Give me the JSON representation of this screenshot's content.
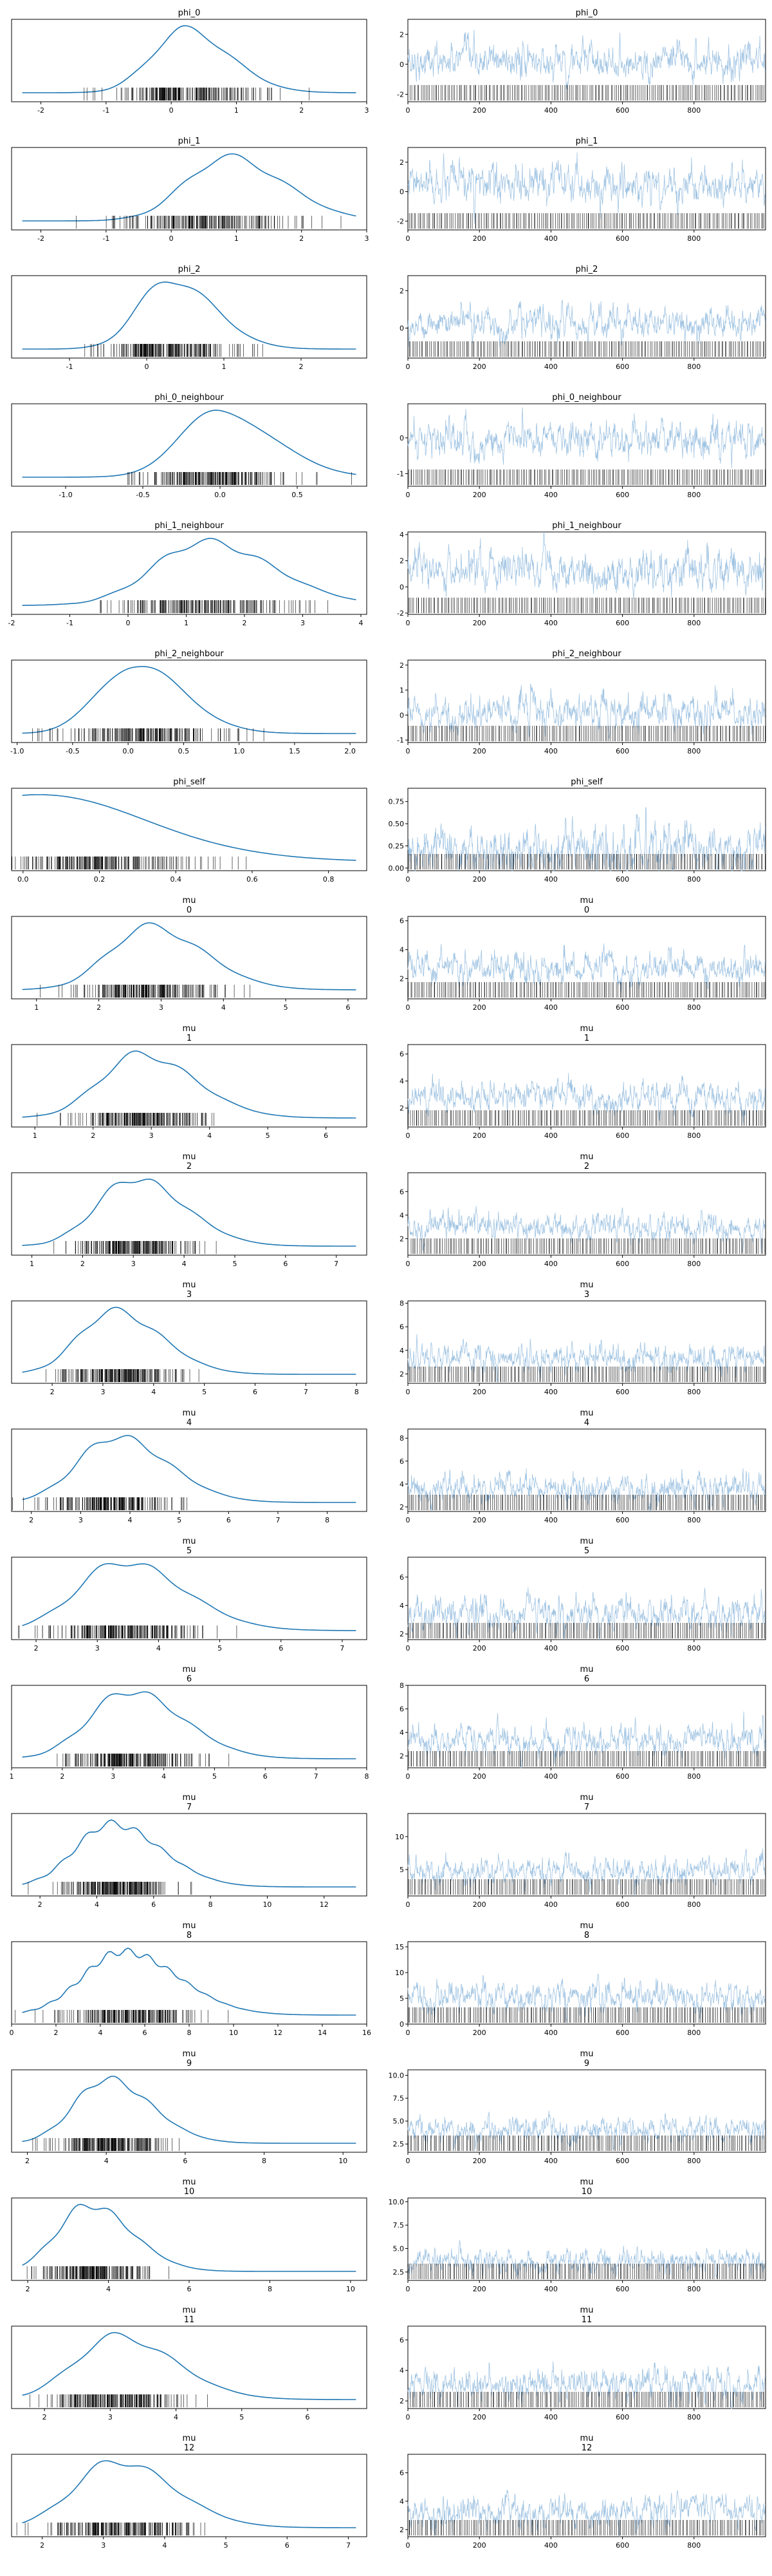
{
  "figure": {
    "rows": [
      {
        "title": "phi_0",
        "kde_ticks": [
          "-2",
          "-1",
          "0",
          "1",
          "2",
          "3"
        ],
        "kde_xlim": [
          -2.45,
          3.0
        ],
        "kde_peak": 0.2,
        "kde_spread": 0.55,
        "trace_ticks": [
          "-2",
          "0",
          "2"
        ],
        "trace_ylim": [
          -2.5,
          3.0
        ],
        "trace_mean": 0.2,
        "trace_amp": 1.0
      },
      {
        "title": "phi_1",
        "kde_ticks": [
          "-2",
          "-1",
          "0",
          "1",
          "2",
          "3"
        ],
        "kde_xlim": [
          -2.45,
          3.0
        ],
        "kde_peak": 0.85,
        "kde_spread": 0.7,
        "trace_ticks": [
          "-2",
          "0",
          "2"
        ],
        "trace_ylim": [
          -2.6,
          3.0
        ],
        "trace_mean": 0.4,
        "trace_amp": 1.1
      },
      {
        "title": "phi_2",
        "kde_ticks": [
          "-1",
          "0",
          "1",
          "2"
        ],
        "kde_xlim": [
          -1.75,
          2.85
        ],
        "kde_peak": 0.3,
        "kde_spread": 0.45,
        "trace_ticks": [
          "0",
          "2"
        ],
        "trace_ylim": [
          -1.6,
          2.8
        ],
        "trace_mean": 0.3,
        "trace_amp": 0.7
      },
      {
        "title": "phi_0_neighbour",
        "kde_ticks": [
          "-1.0",
          "-0.5",
          "0.0",
          "0.5"
        ],
        "kde_xlim": [
          -1.35,
          0.95
        ],
        "kde_peak": 0.0,
        "kde_spread": 0.28,
        "trace_ticks": [
          "-1",
          "0"
        ],
        "trace_ylim": [
          -1.35,
          0.95
        ],
        "trace_mean": -0.05,
        "trace_amp": 0.45
      },
      {
        "title": "phi_1_neighbour",
        "kde_ticks": [
          "-2",
          "-1",
          "0",
          "1",
          "2",
          "3",
          "4"
        ],
        "kde_xlim": [
          -2.0,
          4.1
        ],
        "kde_peak": 1.3,
        "kde_spread": 0.95,
        "trace_ticks": [
          "-2",
          "0",
          "2",
          "4"
        ],
        "trace_ylim": [
          -2.1,
          4.2
        ],
        "trace_mean": 1.2,
        "trace_amp": 1.3
      },
      {
        "title": "phi_2_neighbour",
        "kde_ticks": [
          "-1.0",
          "-0.5",
          "0.0",
          "0.5",
          "1.0",
          "1.5",
          "2.0"
        ],
        "kde_xlim": [
          -1.05,
          2.15
        ],
        "kde_peak": 0.05,
        "kde_spread": 0.35,
        "trace_ticks": [
          "-1",
          "0",
          "1",
          "2"
        ],
        "trace_ylim": [
          -1.1,
          2.2
        ],
        "trace_mean": 0.1,
        "trace_amp": 0.6
      },
      {
        "title": "phi_self",
        "kde_ticks": [
          "0.0",
          "0.2",
          "0.4",
          "0.6",
          "0.8"
        ],
        "kde_xlim": [
          -0.03,
          0.9
        ],
        "kde_peak": 0.0,
        "kde_spread": 0.25,
        "trace_ticks": [
          "0.00",
          "0.25",
          "0.50",
          "0.75"
        ],
        "trace_ylim": [
          -0.03,
          0.9
        ],
        "trace_mean": 0.2,
        "trace_amp": 0.22
      },
      {
        "title": "mu\n0",
        "kde_ticks": [
          "1",
          "2",
          "3",
          "4",
          "5",
          "6"
        ],
        "kde_xlim": [
          0.6,
          6.3
        ],
        "kde_peak": 2.8,
        "kde_spread": 0.7,
        "trace_ticks": [
          "2",
          "4",
          "6"
        ],
        "trace_ylim": [
          0.6,
          6.3
        ],
        "trace_mean": 2.8,
        "trace_amp": 0.9
      },
      {
        "title": "mu\n1",
        "kde_ticks": [
          "1",
          "2",
          "3",
          "4",
          "5",
          "6"
        ],
        "kde_xlim": [
          0.6,
          6.7
        ],
        "kde_peak": 2.8,
        "kde_spread": 0.75,
        "trace_ticks": [
          "2",
          "4",
          "6"
        ],
        "trace_ylim": [
          0.6,
          6.7
        ],
        "trace_mean": 2.8,
        "trace_amp": 0.95
      },
      {
        "title": "mu\n2",
        "kde_ticks": [
          "1",
          "2",
          "3",
          "4",
          "5",
          "6",
          "7"
        ],
        "kde_xlim": [
          0.6,
          7.6
        ],
        "kde_peak": 3.0,
        "kde_spread": 0.8,
        "trace_ticks": [
          "2",
          "4",
          "6"
        ],
        "trace_ylim": [
          0.6,
          7.6
        ],
        "trace_mean": 3.0,
        "trace_amp": 1.0
      },
      {
        "title": "mu\n3",
        "kde_ticks": [
          "2",
          "3",
          "4",
          "5",
          "6",
          "7",
          "8"
        ],
        "kde_xlim": [
          1.2,
          8.2
        ],
        "kde_peak": 3.2,
        "kde_spread": 0.75,
        "trace_ticks": [
          "2",
          "4",
          "6",
          "8"
        ],
        "trace_ylim": [
          1.2,
          8.2
        ],
        "trace_mean": 3.3,
        "trace_amp": 1.0
      },
      {
        "title": "mu\n4",
        "kde_ticks": [
          "2",
          "3",
          "4",
          "5",
          "6",
          "7",
          "8"
        ],
        "kde_xlim": [
          1.6,
          8.8
        ],
        "kde_peak": 3.7,
        "kde_spread": 0.85,
        "trace_ticks": [
          "2",
          "4",
          "6",
          "8"
        ],
        "trace_ylim": [
          1.6,
          8.8
        ],
        "trace_mean": 3.7,
        "trace_amp": 1.1
      },
      {
        "title": "mu\n5",
        "kde_ticks": [
          "2",
          "3",
          "4",
          "5",
          "6",
          "7"
        ],
        "kde_xlim": [
          1.6,
          7.4
        ],
        "kde_peak": 3.4,
        "kde_spread": 0.8,
        "trace_ticks": [
          "2",
          "4",
          "6"
        ],
        "trace_ylim": [
          1.6,
          7.4
        ],
        "trace_mean": 3.4,
        "trace_amp": 1.0
      },
      {
        "title": "mu\n6",
        "kde_ticks": [
          "1",
          "2",
          "3",
          "4",
          "5",
          "6",
          "7",
          "8"
        ],
        "kde_xlim": [
          1.0,
          8.0
        ],
        "kde_peak": 3.3,
        "kde_spread": 0.85,
        "trace_ticks": [
          "2",
          "4",
          "6",
          "8"
        ],
        "trace_ylim": [
          1.0,
          8.0
        ],
        "trace_mean": 3.3,
        "trace_amp": 1.1
      },
      {
        "title": "mu\n7",
        "kde_ticks": [
          "2",
          "4",
          "6",
          "8",
          "10",
          "12"
        ],
        "kde_xlim": [
          1.0,
          13.5
        ],
        "kde_peak": 4.5,
        "kde_spread": 1.4,
        "trace_ticks": [
          "5",
          "10"
        ],
        "trace_ylim": [
          1.0,
          13.5
        ],
        "trace_mean": 4.6,
        "trace_amp": 1.8
      },
      {
        "title": "mu\n8",
        "kde_ticks": [
          "0",
          "2",
          "4",
          "6",
          "8",
          "10",
          "12",
          "14",
          "16"
        ],
        "kde_xlim": [
          0.0,
          16.0
        ],
        "kde_peak": 5.0,
        "kde_spread": 2.0,
        "trace_ticks": [
          "0",
          "5",
          "10",
          "15"
        ],
        "trace_ylim": [
          0.0,
          16.0
        ],
        "trace_mean": 5.2,
        "trace_amp": 2.4
      },
      {
        "title": "mu\n9",
        "kde_ticks": [
          "2",
          "4",
          "6",
          "8",
          "10"
        ],
        "kde_xlim": [
          1.6,
          10.6
        ],
        "kde_peak": 4.0,
        "kde_spread": 0.9,
        "trace_ticks": [
          "2.5",
          "5.0",
          "7.5",
          "10.0"
        ],
        "trace_ylim": [
          1.6,
          10.6
        ],
        "trace_mean": 4.0,
        "trace_amp": 1.2
      },
      {
        "title": "mu\n10",
        "kde_ticks": [
          "2",
          "4",
          "6",
          "8",
          "10"
        ],
        "kde_xlim": [
          1.6,
          10.4
        ],
        "kde_peak": 3.5,
        "kde_spread": 0.85,
        "trace_ticks": [
          "2.5",
          "5.0",
          "7.5",
          "10.0"
        ],
        "trace_ylim": [
          1.6,
          10.4
        ],
        "trace_mean": 3.6,
        "trace_amp": 1.1
      },
      {
        "title": "mu\n11",
        "kde_ticks": [
          "2",
          "3",
          "4",
          "5",
          "6"
        ],
        "kde_xlim": [
          1.5,
          6.9
        ],
        "kde_peak": 3.1,
        "kde_spread": 0.7,
        "trace_ticks": [
          "2",
          "4",
          "6"
        ],
        "trace_ylim": [
          1.5,
          6.9
        ],
        "trace_mean": 3.1,
        "trace_amp": 0.9
      },
      {
        "title": "mu\n12",
        "kde_ticks": [
          "2",
          "3",
          "4",
          "5",
          "6",
          "7"
        ],
        "kde_xlim": [
          1.5,
          7.3
        ],
        "kde_peak": 3.2,
        "kde_spread": 0.75,
        "trace_ticks": [
          "2",
          "4",
          "6"
        ],
        "trace_ylim": [
          1.5,
          7.3
        ],
        "trace_mean": 3.3,
        "trace_amp": 0.95
      }
    ],
    "trace_xticks": [
      "0",
      "200",
      "400",
      "600",
      "800"
    ],
    "trace_xlim": [
      0,
      1000
    ],
    "line_color": "#1f77b4",
    "trace_color": "#9fc3e2",
    "rug_color": "#000000"
  }
}
